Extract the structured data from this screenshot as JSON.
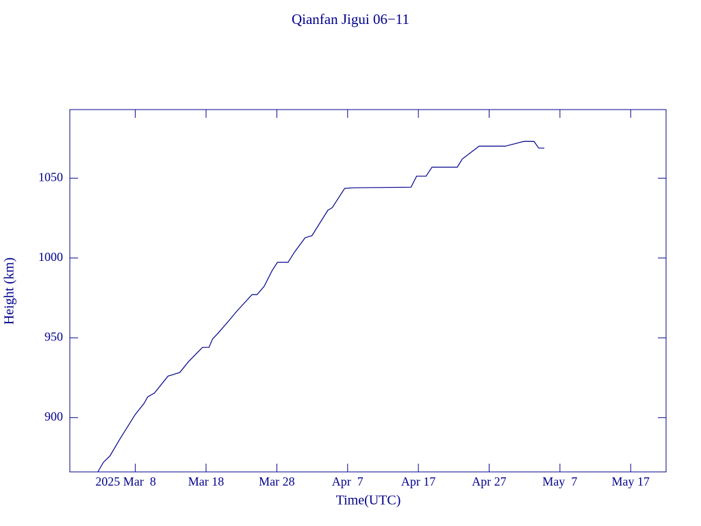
{
  "chart_data": {
    "type": "line",
    "title": "Qianfan Jigui 06−11",
    "x_label": "Time(UTC)",
    "y_label": "Height (km)",
    "color": "#00008b",
    "x": [
      "2025-03-02T17:00",
      "2025-03-03T12:00",
      "2025-03-04T10:00",
      "2025-03-05T21:00",
      "2025-03-08T00:00",
      "2025-03-09T06:00",
      "2025-03-09T18:00",
      "2025-03-10T17:00",
      "2025-03-12T15:00",
      "2025-03-14T07:00",
      "2025-03-15T12:00",
      "2025-03-17T12:00",
      "2025-03-18T10:00",
      "2025-03-18T22:00",
      "2025-03-19T17:00",
      "2025-03-21T08:00",
      "2025-03-22T07:00",
      "2025-03-24T12:00",
      "2025-03-25T05:00",
      "2025-03-26T05:00",
      "2025-03-27T08:00",
      "2025-03-28T02:00",
      "2025-03-29T14:00",
      "2025-03-30T12:00",
      "2025-04-01T00:00",
      "2025-04-01T23:00",
      "2025-04-04T05:00",
      "2025-04-04T20:00",
      "2025-04-06T14:00",
      "2025-04-07T18:00",
      "2025-04-15T23:00",
      "2025-04-16T18:00",
      "2025-04-18T02:00",
      "2025-04-18T22:00",
      "2025-04-22T12:00",
      "2025-04-23T05:00",
      "2025-04-25T14:00",
      "2025-04-29T07:00",
      "2025-05-01T22:00",
      "2025-05-03T08:00",
      "2025-05-04T00:00",
      "2025-05-04T19:00"
    ],
    "values": [
      866,
      872,
      876,
      887,
      902,
      909,
      913,
      915.4,
      926,
      928.3,
      935,
      944,
      944,
      949.3,
      953,
      961.3,
      966.4,
      977.1,
      977.1,
      982.3,
      992.1,
      997.3,
      997.3,
      1003.7,
      1012.7,
      1014,
      1029.9,
      1031.6,
      1043.6,
      1044,
      1044.4,
      1051.3,
      1051.3,
      1056.9,
      1056.9,
      1062,
      1070.1,
      1070.1,
      1073.1,
      1073.1,
      1068.9,
      1068.9
    ],
    "xlim": [
      "2025-02-26T18:00",
      "2025-05-22T00:00"
    ],
    "xticks": [
      {
        "value": "2025-03-08T00:00",
        "label": "2025 Mar  8"
      },
      {
        "value": "2025-03-18T00:00",
        "label": "Mar 18"
      },
      {
        "value": "2025-03-28T00:00",
        "label": "Mar 28"
      },
      {
        "value": "2025-04-07T00:00",
        "label": "Apr  7"
      },
      {
        "value": "2025-04-17T00:00",
        "label": "Apr 17"
      },
      {
        "value": "2025-04-27T00:00",
        "label": "Apr 27"
      },
      {
        "value": "2025-05-07T00:00",
        "label": "May  7"
      },
      {
        "value": "2025-05-17T00:00",
        "label": "May 17"
      }
    ],
    "ylim": [
      866,
      1093
    ],
    "yticks": [
      900,
      950,
      1000,
      1050
    ]
  }
}
